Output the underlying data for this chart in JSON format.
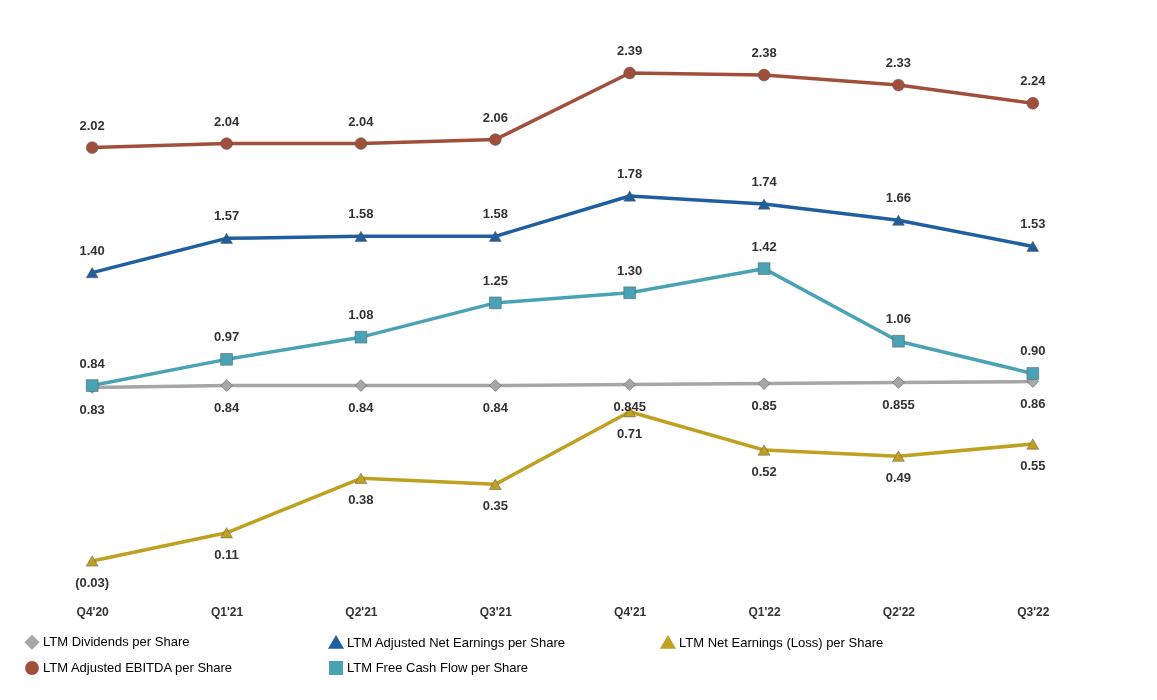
{
  "chart_data": {
    "type": "line",
    "categories": [
      "Q4'20",
      "Q1'21",
      "Q2'21",
      "Q3'21",
      "Q4'21",
      "Q1'22",
      "Q2'22",
      "Q3'22"
    ],
    "tick_labels": "x",
    "grid": false,
    "legend": "bottom",
    "series": [
      {
        "name": "LTM Dividends per Share",
        "color": "#a6a6a6",
        "marker": "diamond",
        "values": [
          0.83,
          0.84,
          0.84,
          0.84,
          0.845,
          0.85,
          0.855,
          0.86
        ],
        "value_labels": [
          "0.83",
          "0.84",
          "0.84",
          "0.84",
          "0.845",
          "0.85",
          "0.855",
          "0.86"
        ]
      },
      {
        "name": "LTM Adjusted Net Earnings per Share",
        "color": "#1f5f9f",
        "marker": "triangle",
        "values": [
          1.4,
          1.57,
          1.58,
          1.58,
          1.78,
          1.74,
          1.66,
          1.53
        ],
        "value_labels": [
          "1.40",
          "1.57",
          "1.58",
          "1.58",
          "1.78",
          "1.74",
          "1.66",
          "1.53"
        ]
      },
      {
        "name": "LTM Net Earnings (Loss) per Share",
        "color": "#c0a020",
        "marker": "triangle",
        "values": [
          -0.03,
          0.11,
          0.38,
          0.35,
          0.71,
          0.52,
          0.49,
          0.55
        ],
        "value_labels": [
          "(0.03)",
          "0.11",
          "0.38",
          "0.35",
          "0.71",
          "0.52",
          "0.49",
          "0.55"
        ]
      },
      {
        "name": "LTM Adjusted EBITDA per Share",
        "color": "#a0503a",
        "marker": "circle",
        "values": [
          2.02,
          2.04,
          2.04,
          2.06,
          2.39,
          2.38,
          2.33,
          2.24
        ],
        "value_labels": [
          "2.02",
          "2.04",
          "2.04",
          "2.06",
          "2.39",
          "2.38",
          "2.33",
          "2.24"
        ]
      },
      {
        "name": "LTM Free Cash Flow per Share",
        "color": "#4aa3b5",
        "marker": "square",
        "values": [
          0.84,
          0.97,
          1.08,
          1.25,
          1.3,
          1.42,
          1.06,
          0.9
        ],
        "value_labels": [
          "0.84",
          "0.97",
          "1.08",
          "1.25",
          "1.30",
          "1.42",
          "1.06",
          "0.90"
        ]
      }
    ]
  }
}
